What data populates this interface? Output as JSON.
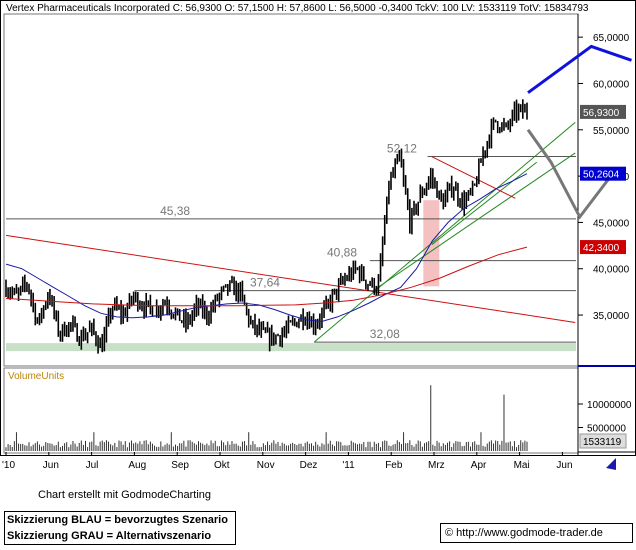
{
  "header": {
    "text": "Vertex Pharmaceuticals Incorporated  C: 56,9300  O: 57,1500  H: 57,8600  L: 56,5000  -0,3400  TckV: 100  LV: 1533119  TotV: 15834793"
  },
  "chart_data": [
    {
      "type": "line",
      "name": "price-panel",
      "ylim": [
        29.5,
        67.5
      ],
      "y_ticks": [
        "35,0000",
        "40,0000",
        "45,0000",
        "50,0000",
        "55,0000",
        "60,0000",
        "65,0000"
      ],
      "y_tick_values": [
        35,
        40,
        45,
        50,
        55,
        60,
        65
      ],
      "x_axis_labels": [
        "'10",
        "Jun",
        "Jul",
        "Aug",
        "Sep",
        "Okt",
        "Nov",
        "Dez",
        "'11",
        "Feb",
        "Mrz",
        "Apr",
        "Mai",
        "Jun"
      ],
      "series": [
        {
          "name": "",
          "color": "#000000",
          "values": [
            38,
            37,
            38.5,
            34,
            37.5,
            33,
            34,
            32.5,
            33.5,
            31.5,
            36,
            35,
            37,
            36,
            35.5,
            36.5,
            35,
            34,
            36,
            35,
            37,
            38,
            37.5,
            34,
            33,
            32.5,
            33,
            34,
            35,
            34,
            35.5,
            37.5,
            39,
            40,
            38.5,
            38,
            49,
            52,
            45,
            48,
            50,
            47,
            49,
            47,
            48.5,
            53,
            56,
            55,
            57,
            56.93
          ]
        },
        {
          "name": "",
          "color": "#1a1aaa",
          "values": [
            40.5,
            40,
            39,
            38,
            37,
            36,
            35.2,
            34.8,
            34.7,
            34.8,
            35,
            35.4,
            35.8,
            36,
            36.2,
            36.3,
            36.1,
            35.6,
            35,
            34.5,
            34.3,
            34.8,
            35.5,
            36.3,
            37.2,
            38,
            40,
            43,
            45,
            46.5,
            47.5,
            48.6,
            49.4,
            50.26
          ]
        },
        {
          "name": "",
          "color": "#cc1111",
          "values": [
            36.8,
            36.6,
            36.4,
            36.2,
            36.1,
            36,
            36,
            36,
            36,
            36.05,
            36.1,
            36.3,
            36.6,
            37.2,
            38,
            39,
            40.3,
            41.5,
            42.34
          ]
        }
      ],
      "horizontal_levels": [
        {
          "label": "52,12",
          "value": 52.12
        },
        {
          "label": "45,38",
          "value": 45.38
        },
        {
          "label": "40,88",
          "value": 40.88
        },
        {
          "label": "37,64",
          "value": 37.64
        },
        {
          "label": "32,08",
          "value": 32.08
        }
      ],
      "price_tags": [
        {
          "label": "56,9300",
          "value": 56.93,
          "color": "#555555"
        },
        {
          "label": "50,2604",
          "value": 50.2604,
          "color": "#0000cc"
        },
        {
          "label": "42,3400",
          "value": 42.34,
          "color": "#cc0000"
        }
      ],
      "scenarios": [
        {
          "name": "BLAU = bevorzugtes Szenario",
          "color": "#1111dd",
          "points": [
            [
              57,
              59
            ],
            [
              62.5,
              64
            ],
            [
              66,
              62.5
            ]
          ]
        },
        {
          "name": "GRAU = Alternativszenario",
          "color": "#777777",
          "points": [
            [
              57,
              55
            ],
            [
              59,
              51.5
            ],
            [
              61.5,
              45.6
            ],
            [
              64.5,
              50.5
            ]
          ]
        }
      ]
    },
    {
      "type": "bar",
      "name": "volume-panel",
      "title": "VolumeUnits",
      "y_ticks": [
        "10000000",
        "5000000"
      ],
      "y_tick_values": [
        10000000,
        5000000
      ],
      "current_volume_label": "1533119",
      "current_volume": 1533119
    }
  ],
  "footer": {
    "credit": "Chart erstellt mit GodmodeCharting",
    "legend_line1": "Skizzierung BLAU = bevorzugtes Szenario",
    "legend_line2": "Skizzierung GRAU = Alternativszenario",
    "url": "http://www.godmode-trader.de",
    "copyright_symbol": "©"
  },
  "colors": {
    "price_bars": "#000000",
    "ma_blue": "#1a1aaa",
    "ma_red": "#cc1111",
    "trend_red": "#cc1111",
    "trend_green": "#228822",
    "support_band": "#c8e0c8",
    "gap_fill": "#f4c0c0",
    "axis_blue": "#0000aa"
  }
}
